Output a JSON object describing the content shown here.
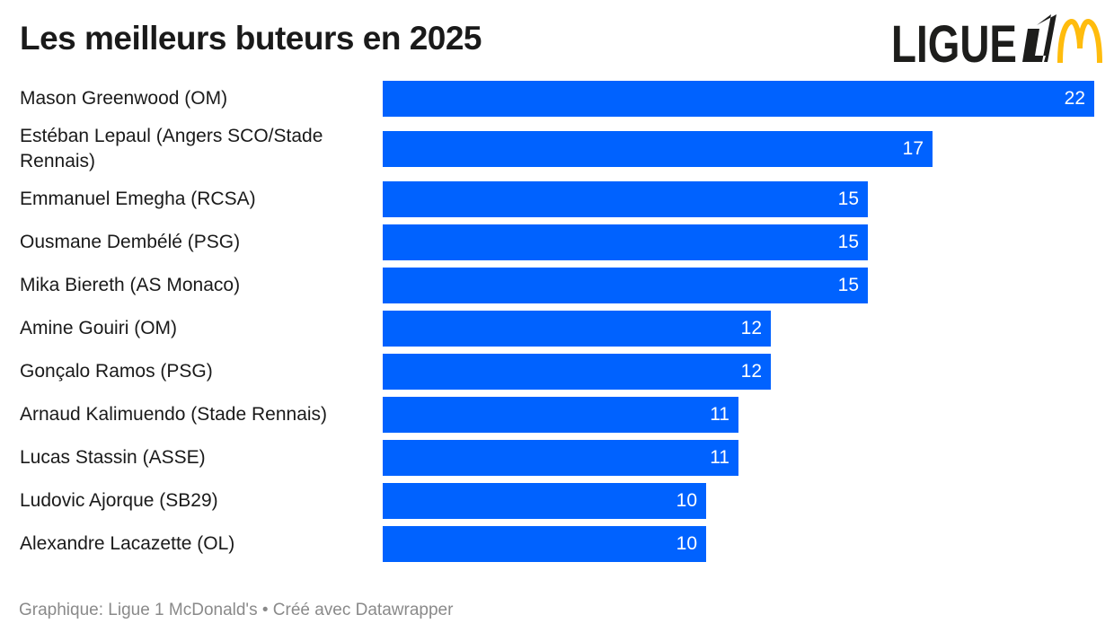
{
  "chart_data": {
    "type": "bar",
    "orientation": "horizontal",
    "title": "Les meilleurs buteurs en 2025",
    "categories": [
      "Mason Greenwood (OM)",
      "Estéban Lepaul (Angers SCO/Stade Rennais)",
      "Emmanuel Emegha (RCSA)",
      "Ousmane Dembélé (PSG)",
      "Mika Biereth (AS Monaco)",
      "Amine Gouiri (OM)",
      "Gonçalo Ramos (PSG)",
      "Arnaud Kalimuendo (Stade Rennais)",
      "Lucas Stassin (ASSE)",
      "Ludovic Ajorque (SB29)",
      "Alexandre Lacazette (OL)"
    ],
    "values": [
      22,
      17,
      15,
      15,
      15,
      12,
      12,
      11,
      11,
      10,
      10
    ],
    "xlim": [
      0,
      22
    ],
    "grid": false,
    "bar_color": "#0062ff"
  },
  "logo": {
    "text": "LIGUE 1 McDonald's",
    "colors": {
      "ligue": "#1d1d1b",
      "arches": "#ffbc0d"
    }
  },
  "footer": "Graphique: Ligue 1 McDonald's • Créé avec Datawrapper"
}
